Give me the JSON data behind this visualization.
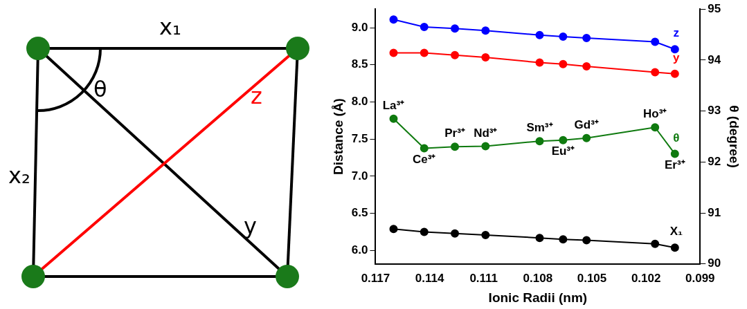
{
  "chart_data": [
    {
      "type": "other",
      "annotations": [
        "x₁",
        "x₂",
        "θ",
        "z",
        "y"
      ]
    },
    {
      "type": "line",
      "xlabel": "Ionic Radii (nm)",
      "ylabel": "Distance (Å)",
      "y2label": "θ (degree)",
      "x": [
        0.116,
        0.1143,
        0.1126,
        0.1109,
        0.1079,
        0.1066,
        0.1053,
        0.1015,
        0.1004
      ],
      "xlim": [
        0.117,
        0.099
      ],
      "xticks": [
        0.117,
        0.114,
        0.111,
        0.108,
        0.105,
        0.102,
        0.099
      ],
      "ylim": [
        5.82,
        9.25
      ],
      "yticks": [
        {
          "value": 6,
          "label": "6.0"
        },
        {
          "value": 6.5,
          "label": "6.5"
        },
        {
          "value": 7,
          "label": "7.0"
        },
        {
          "value": 7.5,
          "label": "7.5"
        },
        {
          "value": 8,
          "label": "8.0"
        },
        {
          "value": 8.5,
          "label": "8.5"
        },
        {
          "value": 9,
          "label": "9.0"
        }
      ],
      "y2lim": [
        90,
        95
      ],
      "y2ticks": [
        90,
        91,
        92,
        93,
        94,
        95
      ],
      "marker": "circle",
      "grid": false,
      "legend": false,
      "series": [
        {
          "name": "z",
          "color": "#0000ff",
          "values": [
            9.11,
            9.01,
            8.99,
            8.96,
            8.9,
            8.88,
            8.86,
            8.81,
            8.71
          ]
        },
        {
          "name": "y",
          "color": "#ff0000",
          "values": [
            8.66,
            8.66,
            8.63,
            8.6,
            8.53,
            8.51,
            8.48,
            8.4,
            8.38
          ]
        },
        {
          "name": "θ",
          "color": "#0f7a0f",
          "axis": "y2",
          "values": [
            92.85,
            92.27,
            92.3,
            92.31,
            92.41,
            92.43,
            92.47,
            92.68,
            92.16
          ]
        },
        {
          "name": "X₁",
          "color": "#000000",
          "values": [
            6.29,
            6.25,
            6.23,
            6.21,
            6.17,
            6.15,
            6.14,
            6.09,
            6.04
          ]
        }
      ],
      "annotations": [
        "La³⁺",
        "Ce³⁺",
        "Pr³⁺",
        "Nd³⁺",
        "Sm³⁺",
        "Eu³⁺",
        "Gd³⁺",
        "Ho³⁺",
        "Er³⁺"
      ]
    }
  ]
}
